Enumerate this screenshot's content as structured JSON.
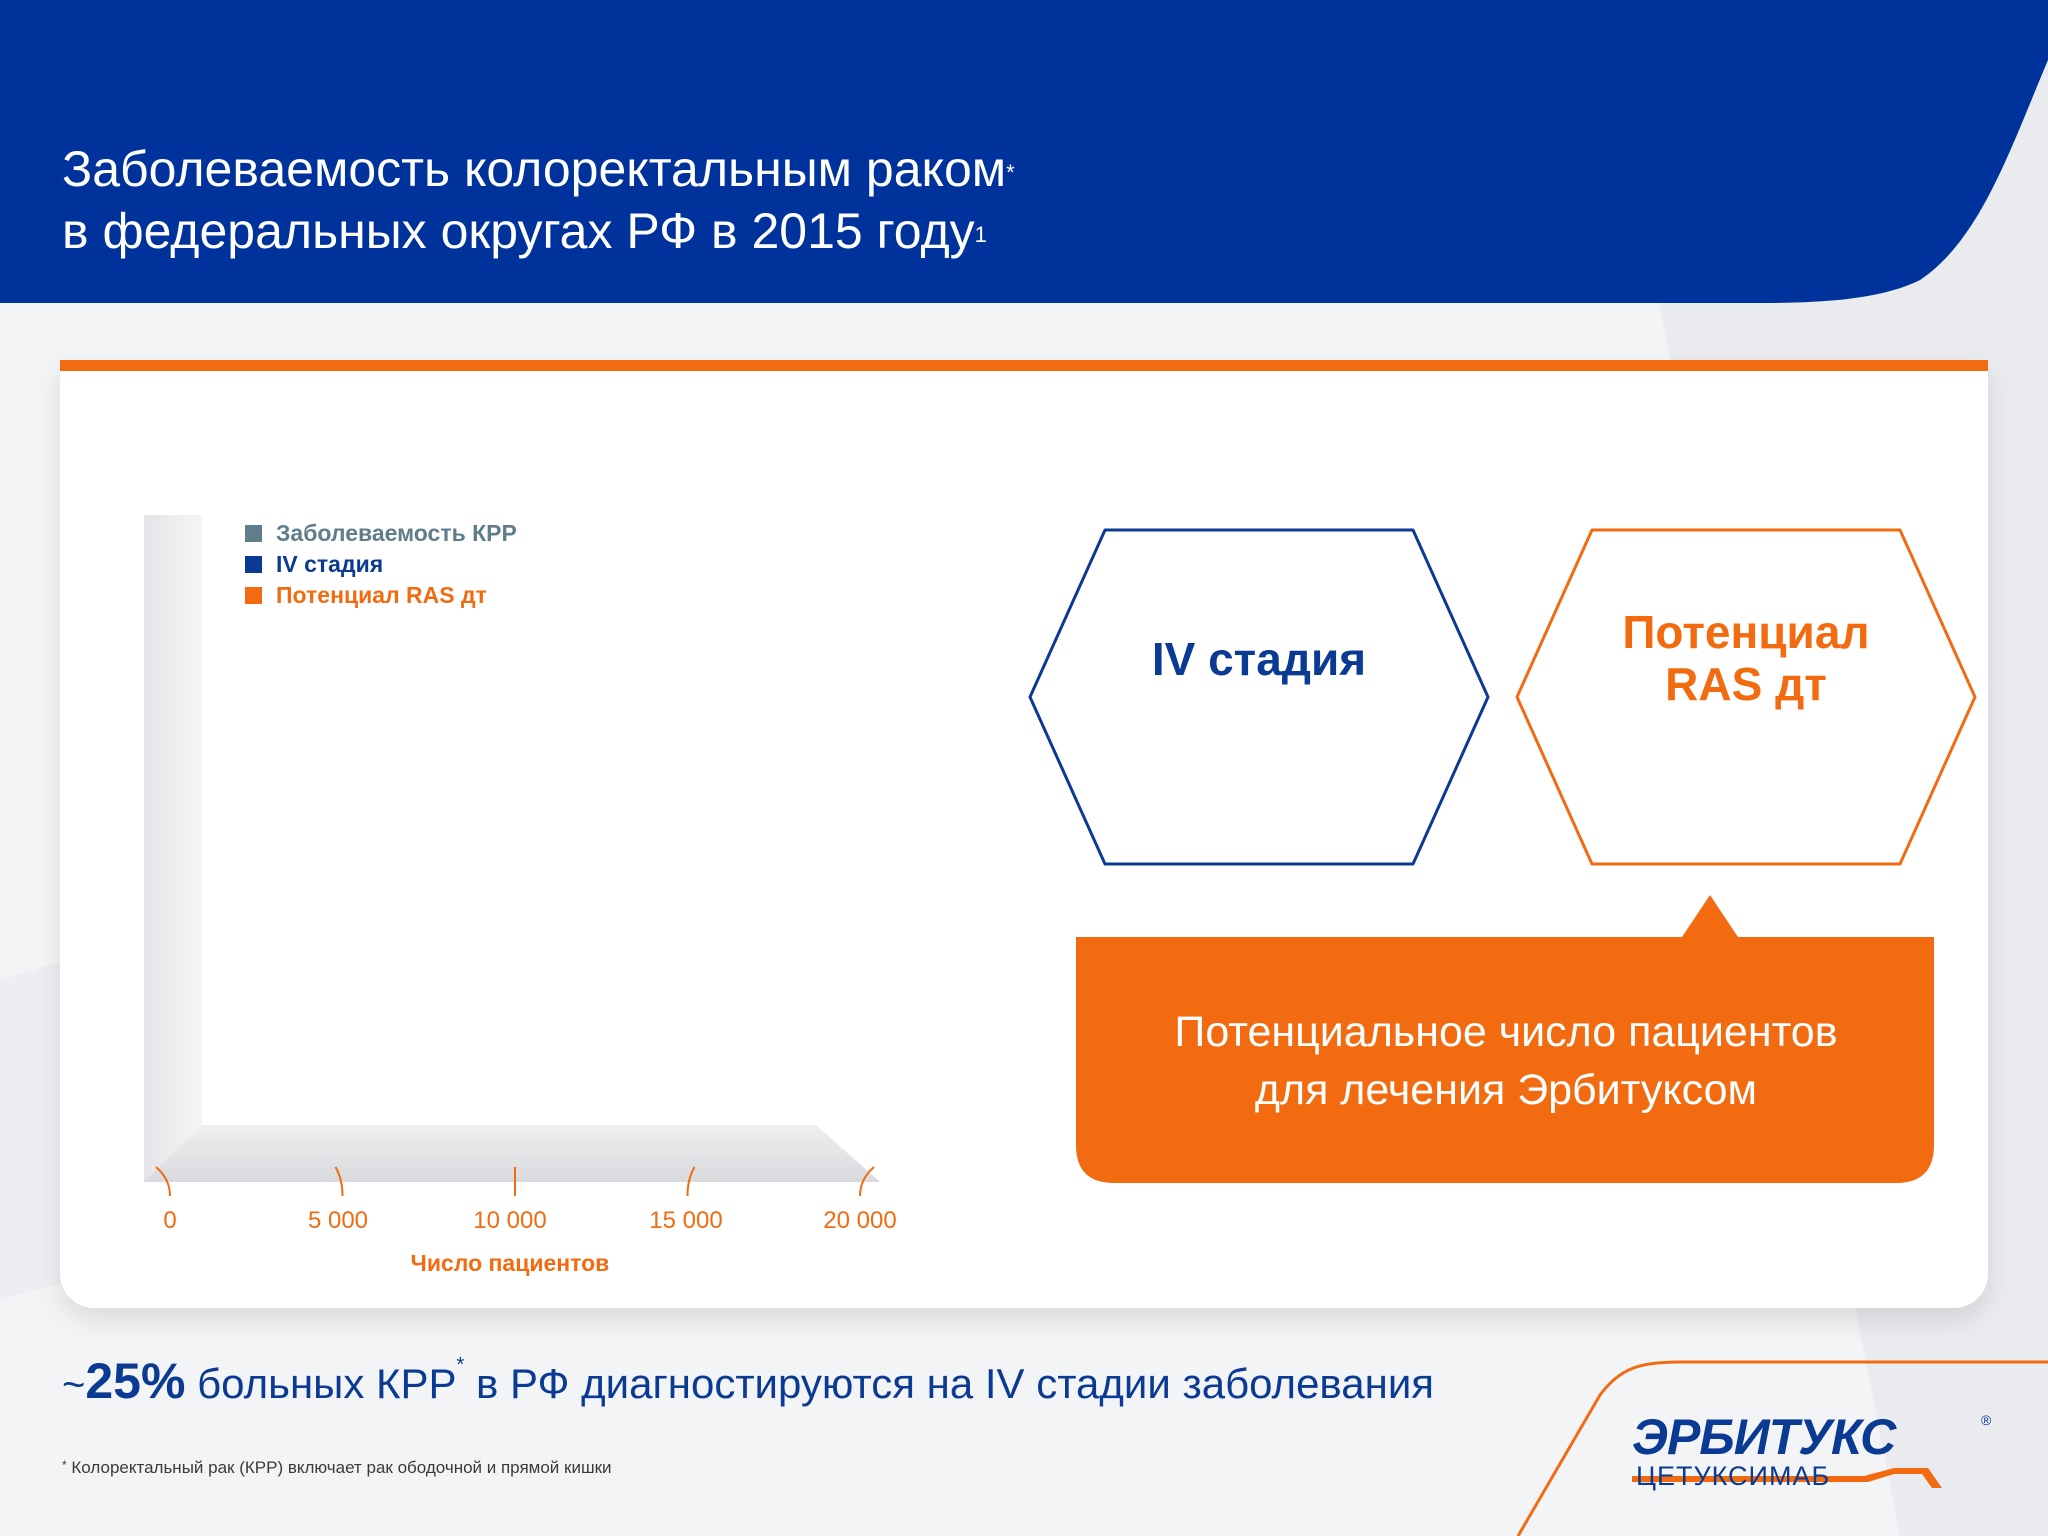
{
  "colors": {
    "header_blue": "#00329b",
    "accent_orange": "#f26b10",
    "text_blue": "#0b3a93",
    "gray": "#607d8b"
  },
  "header": {
    "title_line1": "Заболеваемость колоректальным раком",
    "title_line1_sup": "*",
    "title_line2": "в федеральных округах РФ в 2015 году",
    "title_line2_sup": "1"
  },
  "chart_data": {
    "type": "bar",
    "orientation": "horizontal",
    "series": [
      {
        "name": "Заболеваемость КРР",
        "color": "#607d8b",
        "values": []
      },
      {
        "name": "IV стадия",
        "color": "#0b3a93",
        "values": []
      },
      {
        "name": "Потенциал RAS дт",
        "color": "#f26b10",
        "values": []
      }
    ],
    "x_ticks": [
      "0",
      "5 000",
      "10 000",
      "15 000",
      "20 000"
    ],
    "xlim": [
      0,
      20000
    ],
    "xlabel": "Число пациентов",
    "legend_position": "top-left"
  },
  "hexagons": {
    "stage4": "IV стадия",
    "ras_line1": "Потенциал",
    "ras_line2": "RAS дт"
  },
  "callout": {
    "line1": "Потенциальное число пациентов",
    "line2": "для лечения Эрбитуксом"
  },
  "summary": {
    "tilde": "~",
    "percent": "25%",
    "text_a": " больных КРР",
    "sup": "*",
    "text_b": " в РФ диагностируются на IV стадии заболевания"
  },
  "footnote": {
    "sup": "*",
    "text": " Колоректальный рак (КРР) включает рак ободочной и прямой кишки"
  },
  "logo": {
    "name": "ЭРБИТУКС",
    "reg": "®",
    "sub": "ЦЕТУКСИМАБ"
  }
}
